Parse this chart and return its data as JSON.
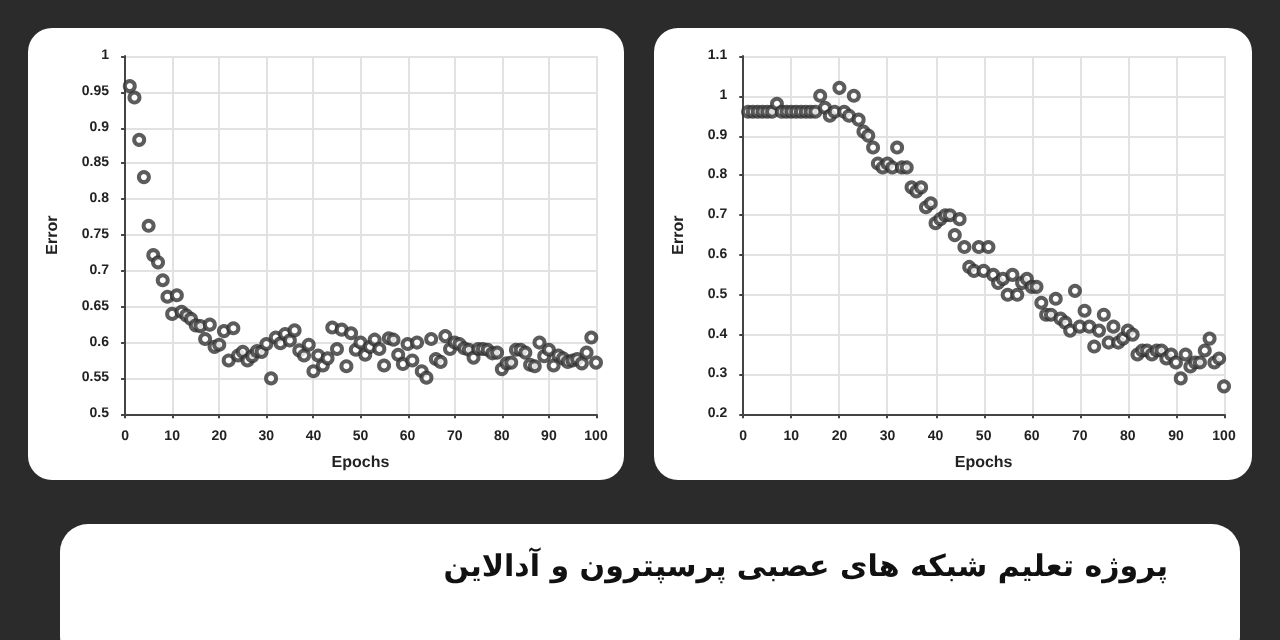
{
  "chart_data": [
    {
      "type": "scatter",
      "xlabel": "Epochs",
      "ylabel": "Error",
      "color": "#333333",
      "marker": "circle",
      "grid": true,
      "xlim": [
        0,
        100
      ],
      "xticks": [
        0,
        10,
        20,
        30,
        40,
        50,
        60,
        70,
        80,
        90,
        100
      ],
      "ylim": [
        0.5,
        1
      ],
      "yticks": [
        0.5,
        0.55,
        0.6,
        0.65,
        0.7,
        0.75,
        0.8,
        0.85,
        0.9,
        0.95,
        1
      ],
      "x": [
        1,
        2,
        3,
        4,
        5,
        6,
        7,
        8,
        9,
        10,
        11,
        12,
        13,
        14,
        15,
        16,
        17,
        18,
        19,
        20,
        21,
        22,
        23,
        24,
        25,
        26,
        27,
        28,
        29,
        30,
        31,
        32,
        33,
        34,
        35,
        36,
        37,
        38,
        39,
        40,
        41,
        42,
        43,
        44,
        45,
        46,
        47,
        48,
        49,
        50,
        51,
        52,
        53,
        54,
        55,
        56,
        57,
        58,
        59,
        60,
        61,
        62,
        63,
        64,
        65,
        66,
        67,
        68,
        69,
        70,
        71,
        72,
        73,
        74,
        75,
        76,
        77,
        78,
        79,
        80,
        81,
        82,
        83,
        84,
        85,
        86,
        87,
        88,
        89,
        90,
        91,
        92,
        93,
        94,
        95,
        96,
        97,
        98,
        99,
        100
      ],
      "values": [
        0.958,
        0.942,
        0.883,
        0.831,
        0.763,
        0.722,
        0.712,
        0.687,
        0.664,
        0.64,
        0.666,
        0.643,
        0.638,
        0.633,
        0.624,
        0.623,
        0.605,
        0.625,
        0.594,
        0.597,
        0.616,
        0.575,
        0.62,
        0.582,
        0.587,
        0.575,
        0.581,
        0.588,
        0.587,
        0.598,
        0.55,
        0.607,
        0.599,
        0.612,
        0.603,
        0.617,
        0.589,
        0.582,
        0.597,
        0.56,
        0.582,
        0.568,
        0.578,
        0.621,
        0.591,
        0.618,
        0.567,
        0.613,
        0.59,
        0.6,
        0.583,
        0.594,
        0.604,
        0.591,
        0.568,
        0.606,
        0.604,
        0.583,
        0.57,
        0.598,
        0.575,
        0.6,
        0.56,
        0.551,
        0.605,
        0.577,
        0.573,
        0.609,
        0.591,
        0.6,
        0.598,
        0.592,
        0.59,
        0.579,
        0.591,
        0.591,
        0.59,
        0.585,
        0.586,
        0.563,
        0.571,
        0.572,
        0.59,
        0.59,
        0.586,
        0.569,
        0.567,
        0.6,
        0.581,
        0.59,
        0.568,
        0.582,
        0.578,
        0.573,
        0.575,
        0.577,
        0.571,
        0.586,
        0.607,
        0.572
      ]
    },
    {
      "type": "scatter",
      "xlabel": "Epochs",
      "ylabel": "Error",
      "color": "#333333",
      "marker": "circle",
      "grid": true,
      "xlim": [
        0,
        100
      ],
      "xticks": [
        0,
        10,
        20,
        30,
        40,
        50,
        60,
        70,
        80,
        90,
        100
      ],
      "ylim": [
        0.2,
        1.1
      ],
      "yticks": [
        0.2,
        0.3,
        0.4,
        0.5,
        0.6,
        0.7,
        0.8,
        0.9,
        1,
        1.1
      ],
      "x": [
        1,
        2,
        3,
        4,
        5,
        6,
        7,
        8,
        9,
        10,
        11,
        12,
        13,
        14,
        15,
        16,
        17,
        18,
        19,
        20,
        21,
        22,
        23,
        24,
        25,
        26,
        27,
        28,
        29,
        30,
        31,
        32,
        33,
        34,
        35,
        36,
        37,
        38,
        39,
        40,
        41,
        42,
        43,
        44,
        45,
        46,
        47,
        48,
        49,
        50,
        51,
        52,
        53,
        54,
        55,
        56,
        57,
        58,
        59,
        60,
        61,
        62,
        63,
        64,
        65,
        66,
        67,
        68,
        69,
        70,
        71,
        72,
        73,
        74,
        75,
        76,
        77,
        78,
        79,
        80,
        81,
        82,
        83,
        84,
        85,
        86,
        87,
        88,
        89,
        90,
        91,
        92,
        93,
        94,
        95,
        96,
        97,
        98,
        99,
        100
      ],
      "values": [
        0.96,
        0.96,
        0.96,
        0.96,
        0.96,
        0.96,
        0.98,
        0.96,
        0.96,
        0.96,
        0.96,
        0.96,
        0.96,
        0.96,
        0.96,
        1.0,
        0.97,
        0.95,
        0.96,
        1.02,
        0.96,
        0.95,
        1.0,
        0.94,
        0.91,
        0.9,
        0.87,
        0.83,
        0.82,
        0.83,
        0.82,
        0.87,
        0.82,
        0.82,
        0.77,
        0.76,
        0.77,
        0.72,
        0.73,
        0.68,
        0.69,
        0.7,
        0.7,
        0.65,
        0.69,
        0.62,
        0.57,
        0.56,
        0.62,
        0.56,
        0.62,
        0.55,
        0.53,
        0.54,
        0.5,
        0.55,
        0.5,
        0.53,
        0.54,
        0.52,
        0.52,
        0.48,
        0.45,
        0.45,
        0.49,
        0.44,
        0.43,
        0.41,
        0.51,
        0.42,
        0.46,
        0.42,
        0.37,
        0.41,
        0.45,
        0.38,
        0.42,
        0.38,
        0.39,
        0.41,
        0.4,
        0.35,
        0.36,
        0.36,
        0.35,
        0.36,
        0.36,
        0.34,
        0.35,
        0.33,
        0.29,
        0.35,
        0.32,
        0.33,
        0.33,
        0.36,
        0.39,
        0.33,
        0.34,
        0.27
      ]
    },
    {
      "type": "other",
      "title": "پروژه تعلیم شبکه های عصبی پرسپترون و آدالاین"
    }
  ]
}
